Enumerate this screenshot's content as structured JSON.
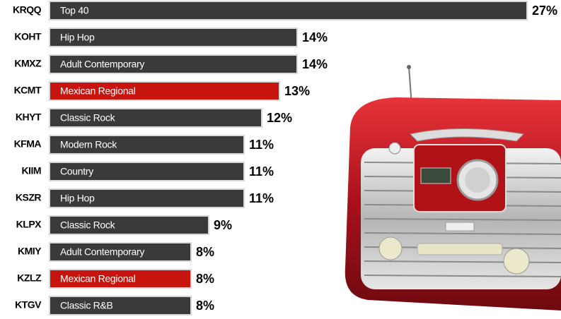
{
  "chart_data": {
    "type": "bar",
    "orientation": "horizontal",
    "categories": [
      "KRQQ",
      "KOHT",
      "KMXZ",
      "KCMT",
      "KHYT",
      "KFMA",
      "KIIM",
      "KSZR",
      "KLPX",
      "KMIY",
      "KZLZ",
      "KTGV"
    ],
    "bar_labels": [
      "Top 40",
      "Hip Hop",
      "Adult Contemporary",
      "Mexican Regional",
      "Classic Rock",
      "Modern Rock",
      "Country",
      "Hip Hop",
      "Classic Rock",
      "Adult Contemporary",
      "Mexican Regional",
      "Classic R&B"
    ],
    "values": [
      27,
      14,
      14,
      13,
      12,
      11,
      11,
      11,
      9,
      8,
      8,
      8
    ],
    "value_labels": [
      "27%",
      "14%",
      "14%",
      "13%",
      "12%",
      "11%",
      "11%",
      "11%",
      "9%",
      "8%",
      "8%",
      "8%"
    ],
    "colors": [
      "#3a3a3a",
      "#3a3a3a",
      "#3a3a3a",
      "#c8140f",
      "#3a3a3a",
      "#3a3a3a",
      "#3a3a3a",
      "#3a3a3a",
      "#3a3a3a",
      "#3a3a3a",
      "#c8140f",
      "#3a3a3a"
    ]
  }
}
